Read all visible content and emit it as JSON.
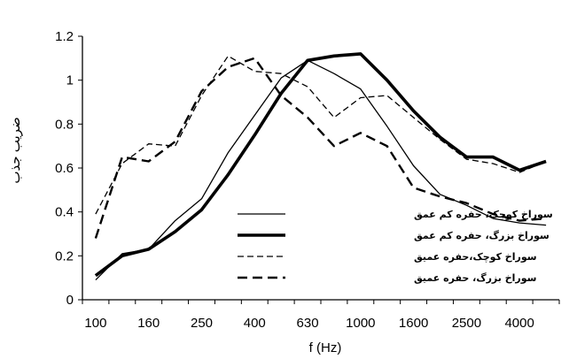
{
  "chart_data": {
    "type": "line",
    "xlabel": "f (Hz)",
    "ylabel": "ضریب جذب",
    "x_categories": [
      "100",
      "",
      "160",
      "",
      "250",
      "",
      "400",
      "",
      "630",
      "",
      "1000",
      "",
      "1600",
      "",
      "2500",
      "",
      "4000",
      ""
    ],
    "x_tick_labels": [
      "100",
      "160",
      "250",
      "400",
      "630",
      "1000",
      "1600",
      "2500",
      "4000"
    ],
    "ylim": [
      0,
      1.2
    ],
    "yticks": [
      "0",
      "0.2",
      "0.4",
      "0.6",
      "0.8",
      "1",
      "1.2"
    ],
    "grid": false,
    "legend_position": "lower-center",
    "series": [
      {
        "name": "سوراخ کوچک، حفره کم عمق",
        "style": "thin-solid",
        "values": [
          0.09,
          0.21,
          0.23,
          0.36,
          0.46,
          0.67,
          0.84,
          1.01,
          1.09,
          1.03,
          0.96,
          0.79,
          0.61,
          0.48,
          0.43,
          0.37,
          0.35,
          0.34
        ]
      },
      {
        "name": "سوراخ بزرگ، حفره کم عمق",
        "style": "thick-solid",
        "values": [
          0.11,
          0.2,
          0.23,
          0.31,
          0.41,
          0.57,
          0.75,
          0.94,
          1.09,
          1.11,
          1.12,
          1.0,
          0.86,
          0.74,
          0.65,
          0.65,
          0.59,
          0.63
        ]
      },
      {
        "name": "سوراخ کوچک،حفره عمیق",
        "style": "thin-dash",
        "values": [
          0.39,
          0.62,
          0.71,
          0.7,
          0.93,
          1.11,
          1.04,
          1.03,
          0.97,
          0.83,
          0.92,
          0.93,
          0.83,
          0.73,
          0.64,
          0.62,
          0.58,
          0.63
        ]
      },
      {
        "name": "سوراخ بزرگ، حفره عمیق",
        "style": "thick-dash",
        "values": [
          0.28,
          0.65,
          0.63,
          0.72,
          0.95,
          1.06,
          1.1,
          0.93,
          0.83,
          0.7,
          0.76,
          0.7,
          0.51,
          0.47,
          0.44,
          0.39,
          0.36,
          0.37
        ]
      }
    ]
  }
}
